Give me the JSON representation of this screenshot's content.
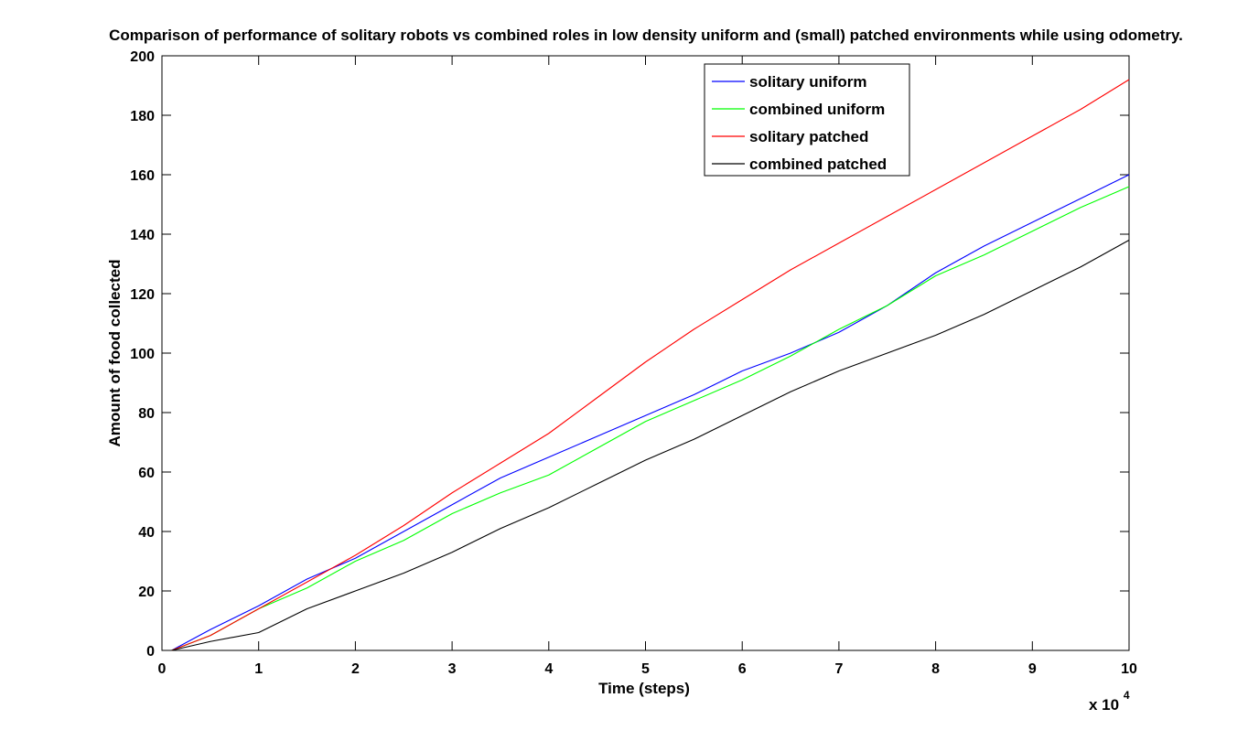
{
  "chart_data": {
    "type": "line",
    "title": "Comparison of performance of solitary robots vs combined roles in low density uniform and (small) patched environments while using odometry.",
    "xlabel": "Time (steps)",
    "ylabel": "Amount of food collected",
    "x_multiplier_label": "x 10",
    "x_multiplier_exponent": "4",
    "xlim": [
      0,
      10
    ],
    "ylim": [
      0,
      200
    ],
    "xticks": [
      0,
      1,
      2,
      3,
      4,
      5,
      6,
      7,
      8,
      9,
      10
    ],
    "yticks": [
      0,
      20,
      40,
      60,
      80,
      100,
      120,
      140,
      160,
      180,
      200
    ],
    "xtick_labels": [
      "0",
      "1",
      "2",
      "3",
      "4",
      "5",
      "6",
      "7",
      "8",
      "9",
      "10"
    ],
    "ytick_labels": [
      "0",
      "20",
      "40",
      "60",
      "80",
      "100",
      "120",
      "140",
      "160",
      "180",
      "200"
    ],
    "grid": false,
    "legend_position": "top-right",
    "series": [
      {
        "name": "solitary uniform",
        "color": "#0000ff",
        "x": [
          0.1,
          0.5,
          1,
          1.5,
          2,
          2.5,
          3,
          3.5,
          4,
          4.5,
          5,
          5.5,
          6,
          6.5,
          7,
          7.5,
          8,
          8.5,
          9,
          9.5,
          10
        ],
        "values": [
          0,
          7,
          15,
          24,
          31,
          40,
          49,
          58,
          65,
          72,
          79,
          86,
          94,
          100,
          107,
          116,
          127,
          136,
          144,
          152,
          160
        ]
      },
      {
        "name": "combined uniform",
        "color": "#00ff00",
        "x": [
          0.1,
          0.5,
          1,
          1.5,
          2,
          2.5,
          3,
          3.5,
          4,
          4.5,
          5,
          5.5,
          6,
          6.5,
          7,
          7.5,
          8,
          8.5,
          9,
          9.5,
          10
        ],
        "values": [
          0,
          5,
          14,
          21,
          30,
          37,
          46,
          53,
          59,
          68,
          77,
          84,
          91,
          99,
          108,
          116,
          126,
          133,
          141,
          149,
          156
        ]
      },
      {
        "name": "solitary patched",
        "color": "#ff0000",
        "x": [
          0.1,
          0.5,
          1,
          1.5,
          2,
          2.5,
          3,
          3.5,
          4,
          4.5,
          5,
          5.5,
          6,
          6.5,
          7,
          7.5,
          8,
          8.5,
          9,
          9.5,
          10
        ],
        "values": [
          0,
          5,
          14,
          23,
          32,
          42,
          53,
          63,
          73,
          85,
          97,
          108,
          118,
          128,
          137,
          146,
          155,
          164,
          173,
          182,
          192
        ]
      },
      {
        "name": "combined patched",
        "color": "#000000",
        "x": [
          0.1,
          0.5,
          1,
          1.5,
          2,
          2.5,
          3,
          3.5,
          4,
          4.5,
          5,
          5.5,
          6,
          6.5,
          7,
          7.5,
          8,
          8.5,
          9,
          9.5,
          10
        ],
        "values": [
          0,
          3,
          6,
          14,
          20,
          26,
          33,
          41,
          48,
          56,
          64,
          71,
          79,
          87,
          94,
          100,
          106,
          113,
          121,
          129,
          138
        ]
      }
    ]
  }
}
